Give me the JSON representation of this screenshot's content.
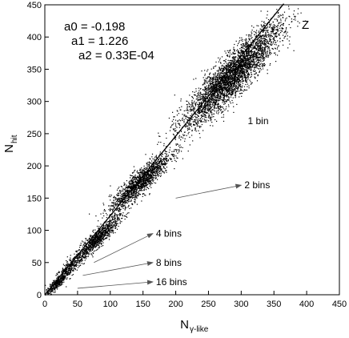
{
  "chart_data": {
    "type": "scatter",
    "title": "",
    "xlabel": "N",
    "xlabel_sub": "γ-like",
    "ylabel": "N",
    "ylabel_sub": "hit",
    "xlim": [
      0,
      450
    ],
    "ylim": [
      0,
      450
    ],
    "xticks": [
      0,
      50,
      100,
      150,
      200,
      250,
      300,
      350,
      400,
      450
    ],
    "yticks": [
      0,
      50,
      100,
      150,
      200,
      250,
      300,
      350,
      400,
      450
    ],
    "grid": false,
    "fit_params": [
      "a0 = -0.198",
      "a1 = 1.226",
      "a2 = 0.33E-04"
    ],
    "fit_coefficients": {
      "a0": -0.198,
      "a1": 1.226,
      "a2": 3.3e-05
    },
    "fit_x_range": [
      0,
      365
    ],
    "corner_label": "Z",
    "clusters": [
      {
        "label": "16 bins",
        "x_center": 18,
        "y_center": 18,
        "x_spread": 9,
        "y_spread": 9,
        "arrow_from": [
          50,
          10
        ],
        "arrow_to": [
          165,
          20
        ]
      },
      {
        "label": "8 bins",
        "x_center": 40,
        "y_center": 45,
        "x_spread": 14,
        "y_spread": 14,
        "arrow_from": [
          58,
          30
        ],
        "arrow_to": [
          165,
          50
        ]
      },
      {
        "label": "4 bins",
        "x_center": 80,
        "y_center": 88,
        "x_spread": 16,
        "y_spread": 16,
        "arrow_from": [
          75,
          50
        ],
        "arrow_to": [
          165,
          95
        ]
      },
      {
        "label": "2 bins",
        "x_center": 145,
        "y_center": 175,
        "x_spread": 23,
        "y_spread": 23,
        "arrow_from": [
          200,
          150
        ],
        "arrow_to": [
          300,
          170
        ]
      },
      {
        "label": "1 bin",
        "x_center": 285,
        "y_center": 340,
        "x_spread": 37,
        "y_spread": 40,
        "label_at": [
          310,
          265
        ]
      }
    ]
  }
}
